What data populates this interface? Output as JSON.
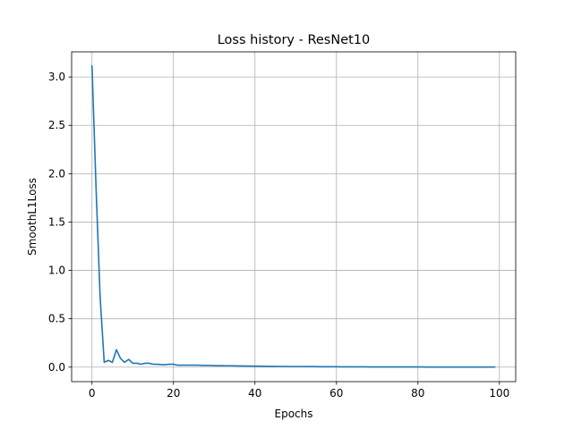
{
  "chart_data": {
    "type": "line",
    "title": "Loss history - ResNet10",
    "xlabel": "Epochs",
    "ylabel": "SmoothL1Loss",
    "xlim": [
      -5,
      104
    ],
    "ylim": [
      -0.15,
      3.26
    ],
    "xticks": [
      0,
      20,
      40,
      60,
      80,
      100
    ],
    "yticks": [
      0.0,
      0.5,
      1.0,
      1.5,
      2.0,
      2.5,
      3.0
    ],
    "grid": true,
    "colors": {
      "line": "#1f77b4",
      "grid": "#b0b0b0"
    },
    "series": [
      {
        "x": [
          0,
          1,
          2,
          3,
          4,
          5,
          6,
          7,
          8,
          9,
          10,
          11,
          12,
          13,
          14,
          15,
          16,
          17,
          18,
          19,
          20,
          21,
          22,
          23,
          24,
          25,
          26,
          27,
          28,
          29,
          30,
          31,
          32,
          33,
          34,
          35,
          36,
          37,
          38,
          39,
          40,
          41,
          42,
          43,
          44,
          45,
          46,
          47,
          48,
          49,
          50,
          51,
          52,
          53,
          54,
          55,
          56,
          57,
          58,
          59,
          60,
          61,
          62,
          63,
          64,
          65,
          66,
          67,
          68,
          69,
          70,
          71,
          72,
          73,
          74,
          75,
          76,
          77,
          78,
          79,
          80,
          81,
          82,
          83,
          84,
          85,
          86,
          87,
          88,
          89,
          90,
          91,
          92,
          93,
          94,
          95,
          96,
          97,
          98,
          99
        ],
        "values": [
          3.12,
          1.85,
          0.72,
          0.05,
          0.07,
          0.05,
          0.18,
          0.09,
          0.05,
          0.08,
          0.04,
          0.04,
          0.03,
          0.04,
          0.04,
          0.03,
          0.03,
          0.025,
          0.025,
          0.03,
          0.03,
          0.02,
          0.02,
          0.02,
          0.02,
          0.02,
          0.02,
          0.018,
          0.018,
          0.017,
          0.016,
          0.015,
          0.015,
          0.014,
          0.014,
          0.013,
          0.012,
          0.012,
          0.011,
          0.011,
          0.01,
          0.01,
          0.009,
          0.009,
          0.008,
          0.008,
          0.007,
          0.007,
          0.007,
          0.006,
          0.006,
          0.006,
          0.005,
          0.005,
          0.005,
          0.005,
          0.004,
          0.004,
          0.004,
          0.004,
          0.004,
          0.003,
          0.003,
          0.003,
          0.003,
          0.003,
          0.003,
          0.003,
          0.002,
          0.002,
          0.002,
          0.002,
          0.002,
          0.002,
          0.002,
          0.002,
          0.002,
          0.002,
          0.002,
          0.002,
          0.002,
          0.002,
          0.001,
          0.001,
          0.001,
          0.001,
          0.001,
          0.001,
          0.001,
          0.001,
          0.001,
          0.001,
          0.001,
          0.001,
          0.001,
          0.001,
          0.001,
          0.001,
          0.001,
          0.001
        ]
      }
    ]
  }
}
